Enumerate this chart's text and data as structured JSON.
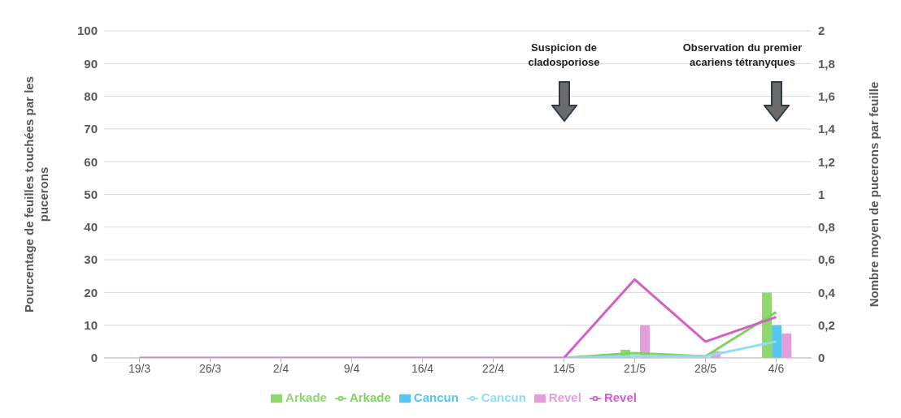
{
  "chart_data": {
    "type": "bar",
    "ylabel": "Pourcentage de feuilles touchées par les pucerons",
    "y2label": "Nombre moyen de pucerons par feuille",
    "categories": [
      "19/3",
      "26/3",
      "2/4",
      "9/4",
      "16/4",
      "22/4",
      "14/5",
      "21/5",
      "28/5",
      "4/6"
    ],
    "series": [
      {
        "name": "Arkade",
        "color": "#8ed86e",
        "values": [
          0,
          0,
          0,
          0,
          0,
          0,
          0,
          2.5,
          0,
          20
        ]
      },
      {
        "name": "Cancun",
        "color": "#56c7f0",
        "values": [
          0,
          0,
          0,
          0,
          0,
          0,
          0,
          0,
          0,
          10
        ]
      },
      {
        "name": "Revel",
        "color": "#e59edb",
        "values": [
          0,
          0,
          0,
          0,
          0,
          0,
          0,
          10,
          2,
          7.5
        ]
      },
      {
        "name": "Arkade",
        "type": "line",
        "axis": "y2",
        "color": "#7fd35f",
        "values": [
          null,
          null,
          null,
          null,
          null,
          null,
          0,
          0.03,
          0.01,
          0.28
        ]
      },
      {
        "name": "Cancun",
        "type": "line",
        "axis": "y2",
        "color": "#93dcf5",
        "values": [
          null,
          null,
          null,
          null,
          null,
          null,
          0,
          0.01,
          0.01,
          0.1
        ]
      },
      {
        "name": "Revel",
        "type": "line",
        "axis": "y2",
        "color": "#d45fc9",
        "values": [
          0,
          0,
          0,
          0,
          0,
          0,
          0,
          0.48,
          0.1,
          0.25
        ]
      }
    ],
    "ylim": [
      0,
      100
    ],
    "yticks": [
      0,
      10,
      20,
      30,
      40,
      50,
      60,
      70,
      80,
      90,
      100
    ],
    "y2lim": [
      0,
      2
    ],
    "y2ticks": [
      0,
      {
        "value": 0.2,
        "label": "0,2"
      },
      {
        "value": 0.4,
        "label": "0,4"
      },
      {
        "value": 0.6,
        "label": "0,6"
      },
      {
        "value": 0.8,
        "label": "0,8"
      },
      1,
      {
        "value": 1.2,
        "label": "1,2"
      },
      {
        "value": 1.4,
        "label": "1,4"
      },
      {
        "value": 1.6,
        "label": "1,6"
      },
      {
        "value": 1.8,
        "label": "1,8"
      },
      2
    ],
    "annotations": [
      "Suspicion de cladosporiose",
      "Observation du premier acariens tétranyques"
    ],
    "grid": "y",
    "legend": "bottom",
    "marker": "none",
    "line_style": "solid"
  }
}
